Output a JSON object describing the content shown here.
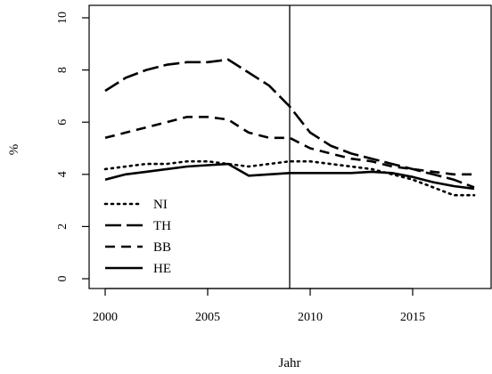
{
  "chart_data": {
    "type": "line",
    "title": "",
    "xlabel": "Jahr",
    "ylabel": "%",
    "xlim": [
      2000,
      2018
    ],
    "ylim": [
      0,
      10
    ],
    "xticks": [
      2000,
      2005,
      2010,
      2015
    ],
    "yticks": [
      0,
      2,
      4,
      6,
      8,
      10
    ],
    "grid": false,
    "legend_position": "bottom-left",
    "vertical_line": 2009,
    "series": [
      {
        "name": "NI",
        "dash": "dotted",
        "x": [
          2000,
          2001,
          2002,
          2003,
          2004,
          2005,
          2006,
          2007,
          2008,
          2009,
          2010,
          2011,
          2012,
          2013,
          2014,
          2015,
          2016,
          2017,
          2018
        ],
        "y": [
          4.2,
          4.3,
          4.4,
          4.4,
          4.5,
          4.5,
          4.4,
          4.3,
          4.4,
          4.5,
          4.5,
          4.4,
          4.3,
          4.2,
          4.0,
          3.8,
          3.5,
          3.2,
          3.2
        ]
      },
      {
        "name": "TH",
        "dash": "longdash",
        "x": [
          2000,
          2001,
          2002,
          2003,
          2004,
          2005,
          2006,
          2007,
          2008,
          2009,
          2010,
          2011,
          2012,
          2013,
          2014,
          2015,
          2016,
          2017,
          2018
        ],
        "y": [
          7.2,
          7.7,
          8.0,
          8.2,
          8.3,
          8.3,
          8.4,
          7.9,
          7.4,
          6.6,
          5.6,
          5.1,
          4.8,
          4.6,
          4.4,
          4.2,
          4.0,
          3.8,
          3.5
        ]
      },
      {
        "name": "BB",
        "dash": "dashed",
        "x": [
          2000,
          2001,
          2002,
          2003,
          2004,
          2005,
          2006,
          2007,
          2008,
          2009,
          2010,
          2011,
          2012,
          2013,
          2014,
          2015,
          2016,
          2017,
          2018
        ],
        "y": [
          5.4,
          5.6,
          5.8,
          6.0,
          6.2,
          6.2,
          6.1,
          5.6,
          5.4,
          5.4,
          5.0,
          4.8,
          4.6,
          4.5,
          4.3,
          4.2,
          4.1,
          4.0,
          4.0
        ]
      },
      {
        "name": "HE",
        "dash": "solid",
        "x": [
          2000,
          2001,
          2002,
          2003,
          2004,
          2005,
          2006,
          2007,
          2008,
          2009,
          2010,
          2011,
          2012,
          2013,
          2014,
          2015,
          2016,
          2017,
          2018
        ],
        "y": [
          3.8,
          4.0,
          4.1,
          4.2,
          4.3,
          4.35,
          4.4,
          3.95,
          4.0,
          4.05,
          4.05,
          4.05,
          4.05,
          4.1,
          4.05,
          3.9,
          3.7,
          3.55,
          3.45
        ]
      }
    ]
  }
}
